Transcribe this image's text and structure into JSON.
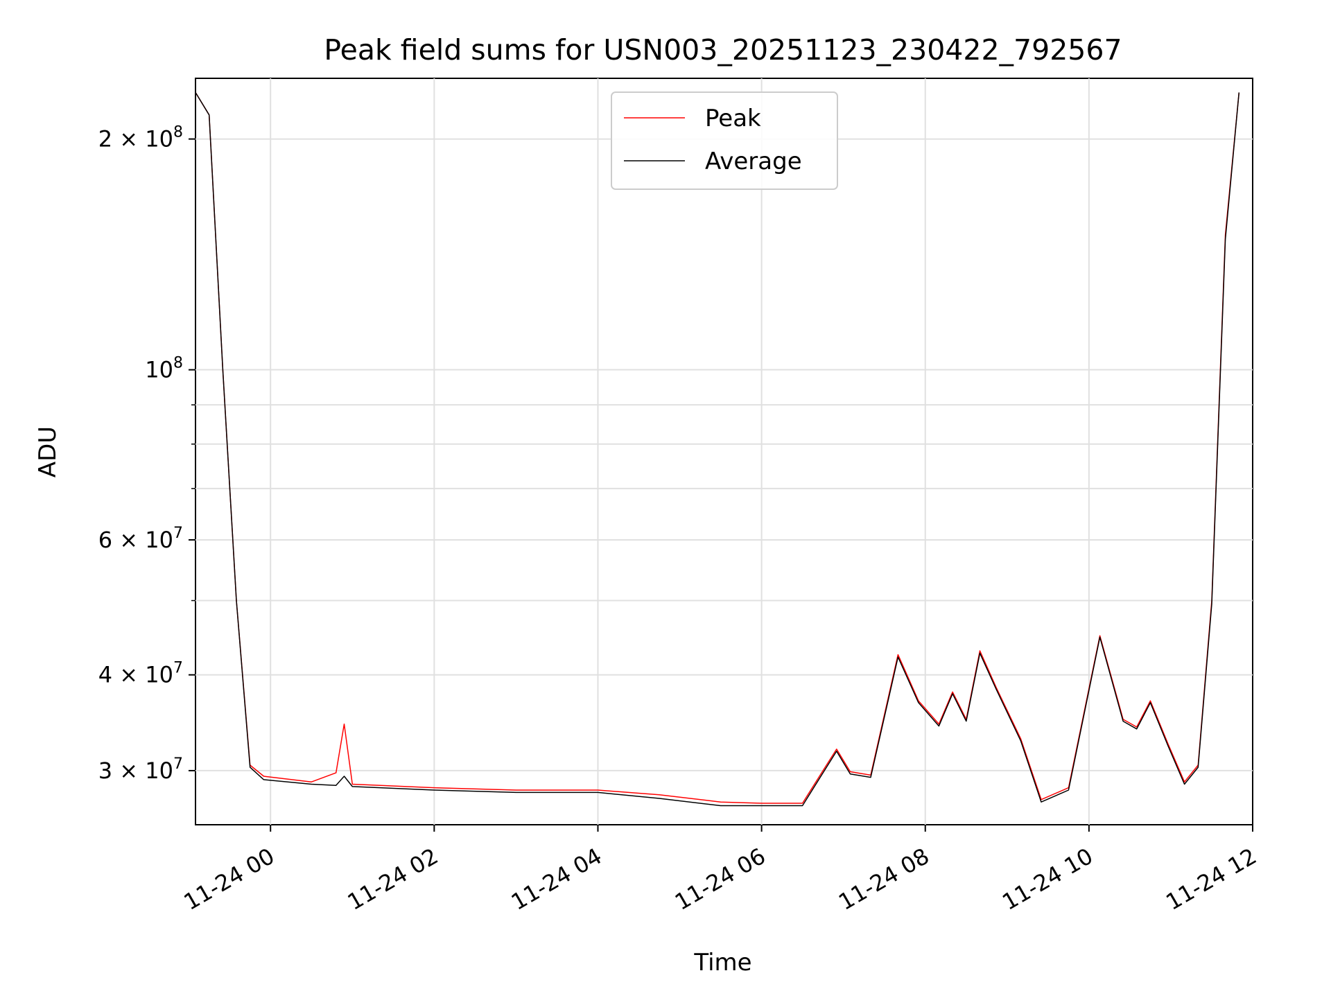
{
  "chart_data": {
    "type": "line",
    "title": "Peak field sums for USN003_20251123_230422_792567",
    "xlabel": "Time",
    "ylabel": "ADU",
    "x_type": "datetime",
    "xlim": [
      "2025-11-23 23:05",
      "2025-11-24 12:00"
    ],
    "ylim": [
      25500000,
      240000000
    ],
    "yscale": "log",
    "grid": true,
    "legend_position": "upper center",
    "x_ticks": [
      {
        "value": "2025-11-24 00:00",
        "label": "11-24 00"
      },
      {
        "value": "2025-11-24 02:00",
        "label": "11-24 02"
      },
      {
        "value": "2025-11-24 04:00",
        "label": "11-24 04"
      },
      {
        "value": "2025-11-24 06:00",
        "label": "11-24 06"
      },
      {
        "value": "2025-11-24 08:00",
        "label": "11-24 08"
      },
      {
        "value": "2025-11-24 10:00",
        "label": "11-24 10"
      },
      {
        "value": "2025-11-24 12:00",
        "label": "11-24 12"
      }
    ],
    "y_ticks_major": [
      {
        "value": 30000000,
        "base": "3 × 10",
        "exp": "7"
      },
      {
        "value": 40000000,
        "base": "4 × 10",
        "exp": "7"
      },
      {
        "value": 60000000,
        "base": "6 × 10",
        "exp": "7"
      },
      {
        "value": 100000000,
        "base": "10",
        "exp": "8"
      },
      {
        "value": 200000000,
        "base": "2 × 10",
        "exp": "8"
      }
    ],
    "y_ticks_minor": [
      50000000,
      70000000,
      80000000,
      90000000
    ],
    "series": [
      {
        "name": "Peak",
        "color": "#ff0000",
        "x": [
          "2025-11-23 23:05",
          "2025-11-23 23:15",
          "2025-11-23 23:25",
          "2025-11-23 23:35",
          "2025-11-23 23:45",
          "2025-11-23 23:55",
          "2025-11-24 00:30",
          "2025-11-24 00:48",
          "2025-11-24 00:54",
          "2025-11-24 01:00",
          "2025-11-24 02:00",
          "2025-11-24 03:00",
          "2025-11-24 04:00",
          "2025-11-24 04:45",
          "2025-11-24 05:30",
          "2025-11-24 06:00",
          "2025-11-24 06:30",
          "2025-11-24 06:45",
          "2025-11-24 06:55",
          "2025-11-24 07:05",
          "2025-11-24 07:20",
          "2025-11-24 07:40",
          "2025-11-24 07:55",
          "2025-11-24 08:10",
          "2025-11-24 08:20",
          "2025-11-24 08:30",
          "2025-11-24 08:40",
          "2025-11-24 08:52",
          "2025-11-24 09:10",
          "2025-11-24 09:25",
          "2025-11-24 09:45",
          "2025-11-24 10:08",
          "2025-11-24 10:25",
          "2025-11-24 10:35",
          "2025-11-24 10:45",
          "2025-11-24 10:58",
          "2025-11-24 11:10",
          "2025-11-24 11:20",
          "2025-11-24 11:30",
          "2025-11-24 11:40",
          "2025-11-24 11:50"
        ],
        "y": [
          230000000,
          215000000,
          100000000,
          50000000,
          30500000,
          29500000,
          29000000,
          29800000,
          34500000,
          28800000,
          28500000,
          28300000,
          28300000,
          27900000,
          27300000,
          27200000,
          27200000,
          30000000,
          32000000,
          29900000,
          29600000,
          42500000,
          37000000,
          34500000,
          38000000,
          35000000,
          43000000,
          38500000,
          33000000,
          27500000,
          28500000,
          45000000,
          35000000,
          34200000,
          37000000,
          32500000,
          29000000,
          30500000,
          50000000,
          150000000,
          230000000
        ]
      },
      {
        "name": "Average",
        "color": "#000000",
        "x": [
          "2025-11-23 23:05",
          "2025-11-23 23:15",
          "2025-11-23 23:25",
          "2025-11-23 23:35",
          "2025-11-23 23:45",
          "2025-11-23 23:55",
          "2025-11-24 00:30",
          "2025-11-24 00:48",
          "2025-11-24 00:54",
          "2025-11-24 01:00",
          "2025-11-24 02:00",
          "2025-11-24 03:00",
          "2025-11-24 04:00",
          "2025-11-24 04:45",
          "2025-11-24 05:30",
          "2025-11-24 06:00",
          "2025-11-24 06:30",
          "2025-11-24 06:45",
          "2025-11-24 06:55",
          "2025-11-24 07:05",
          "2025-11-24 07:20",
          "2025-11-24 07:40",
          "2025-11-24 07:55",
          "2025-11-24 08:10",
          "2025-11-24 08:20",
          "2025-11-24 08:30",
          "2025-11-24 08:40",
          "2025-11-24 08:52",
          "2025-11-24 09:10",
          "2025-11-24 09:25",
          "2025-11-24 09:45",
          "2025-11-24 10:08",
          "2025-11-24 10:25",
          "2025-11-24 10:35",
          "2025-11-24 10:45",
          "2025-11-24 10:58",
          "2025-11-24 11:10",
          "2025-11-24 11:20",
          "2025-11-24 11:30",
          "2025-11-24 11:40",
          "2025-11-24 11:50"
        ],
        "y": [
          230000000,
          215000000,
          100000000,
          50000000,
          30300000,
          29200000,
          28800000,
          28700000,
          29500000,
          28600000,
          28300000,
          28100000,
          28100000,
          27600000,
          27000000,
          27000000,
          27000000,
          29800000,
          31800000,
          29700000,
          29400000,
          42200000,
          36800000,
          34300000,
          37800000,
          34800000,
          42700000,
          38300000,
          32800000,
          27300000,
          28300000,
          44800000,
          34800000,
          34000000,
          36800000,
          32300000,
          28800000,
          30300000,
          49500000,
          148000000,
          230000000
        ]
      }
    ]
  }
}
